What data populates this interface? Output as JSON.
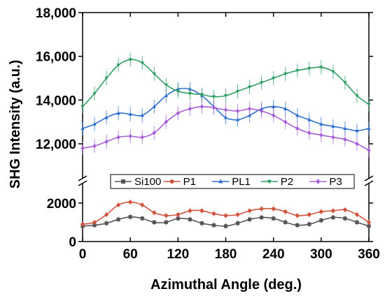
{
  "chart_data": {
    "type": "scatter",
    "title": "",
    "xlabel": "Azimuthal Angle (deg.)",
    "ylabel": "SHG Intensity (a.u.)",
    "xlim": [
      0,
      360
    ],
    "xticks": [
      0,
      60,
      120,
      180,
      240,
      300,
      360
    ],
    "xtick_labels": [
      "0",
      "60",
      "120",
      "180",
      "240",
      "300",
      "360"
    ],
    "y_axis_break": true,
    "upper_panel": {
      "ylim": [
        10500,
        18000
      ],
      "yticks": [
        12000,
        14000,
        16000,
        18000
      ],
      "ytick_labels": [
        "12,000",
        "14,000",
        "16,000",
        "18,000"
      ]
    },
    "lower_panel": {
      "ylim": [
        0,
        2900
      ],
      "yticks": [
        0,
        2000
      ],
      "ytick_labels": [
        "0",
        "2000"
      ]
    },
    "legend": {
      "placement": "center, between panels",
      "entries": [
        "Si100",
        "P1",
        "PL1",
        "P2",
        "P3"
      ]
    },
    "x": [
      0,
      15,
      30,
      45,
      60,
      75,
      90,
      105,
      120,
      135,
      150,
      165,
      180,
      195,
      210,
      225,
      240,
      255,
      270,
      285,
      300,
      315,
      330,
      345,
      360
    ],
    "series": [
      {
        "name": "Si100",
        "panel": "lower",
        "color": "#555555",
        "marker": "square",
        "values": [
          800,
          850,
          950,
          1150,
          1280,
          1200,
          1000,
          1000,
          1200,
          1150,
          950,
          850,
          800,
          950,
          1150,
          1250,
          1200,
          1000,
          850,
          900,
          1100,
          1250,
          1200,
          1000,
          800
        ]
      },
      {
        "name": "P1",
        "panel": "lower",
        "color": "#d0533d",
        "marker": "circle",
        "values": [
          900,
          1000,
          1400,
          1900,
          2050,
          1900,
          1500,
          1350,
          1400,
          1600,
          1600,
          1450,
          1350,
          1400,
          1600,
          1700,
          1700,
          1550,
          1350,
          1400,
          1550,
          1600,
          1650,
          1400,
          1000
        ]
      },
      {
        "name": "PL1",
        "panel": "upper",
        "color": "#2e6fd0",
        "marker": "triangle-up",
        "values": [
          12700,
          12900,
          13200,
          13400,
          13350,
          13300,
          13700,
          14200,
          14500,
          14500,
          14200,
          13700,
          13200,
          13100,
          13300,
          13600,
          13700,
          13600,
          13300,
          13100,
          12900,
          12800,
          12700,
          12600,
          12700
        ]
      },
      {
        "name": "P2",
        "panel": "upper",
        "color": "#2e9e62",
        "marker": "triangle-down",
        "values": [
          13700,
          14300,
          15000,
          15600,
          15850,
          15700,
          15200,
          14700,
          14400,
          14300,
          14250,
          14150,
          14200,
          14400,
          14600,
          14800,
          15000,
          15200,
          15350,
          15450,
          15500,
          15300,
          14800,
          14200,
          13800
        ]
      },
      {
        "name": "P3",
        "panel": "upper",
        "color": "#a85ed8",
        "marker": "diamond",
        "values": [
          11800,
          11900,
          12100,
          12300,
          12350,
          12300,
          12500,
          13000,
          13400,
          13600,
          13700,
          13650,
          13550,
          13500,
          13600,
          13500,
          13300,
          13000,
          12700,
          12500,
          12400,
          12300,
          12200,
          12000,
          11700
        ]
      }
    ]
  }
}
